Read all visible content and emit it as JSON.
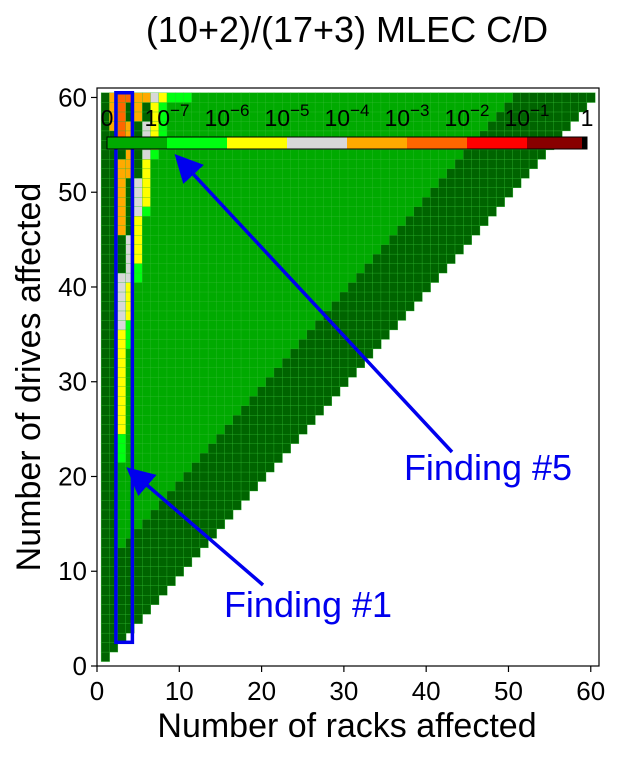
{
  "chart_data": {
    "type": "heatmap",
    "title": "(10+2)/(17+3) MLEC C/D",
    "xlabel": "Number of racks affected",
    "ylabel": "Number of drives affected",
    "xlim": [
      0,
      61
    ],
    "ylim": [
      0,
      61
    ],
    "xticks": [
      "0",
      "10",
      "20",
      "30",
      "40",
      "50",
      "60"
    ],
    "yticks": [
      "0",
      "10",
      "20",
      "30",
      "40",
      "50",
      "60"
    ],
    "grid": false,
    "colorbar": {
      "placement": "top-inside",
      "bins": [
        {
          "label": "0",
          "color": "#00aa00"
        },
        {
          "label": "10^-7",
          "color": "#00ff11"
        },
        {
          "label": "10^-6",
          "color": "#ffff00"
        },
        {
          "label": "10^-5",
          "color": "#d8d8d8"
        },
        {
          "label": "10^-4",
          "color": "#ffaa00"
        },
        {
          "label": "10^-3",
          "color": "#ff6600"
        },
        {
          "label": "10^-2",
          "color": "#ff0000"
        },
        {
          "label": "10^-1",
          "color": "#880000"
        }
      ],
      "labels": [
        {
          "base": "0",
          "exp": ""
        },
        {
          "base": "10",
          "exp": "−7"
        },
        {
          "base": "10",
          "exp": "−6"
        },
        {
          "base": "10",
          "exp": "−5"
        },
        {
          "base": "10",
          "exp": "−4"
        },
        {
          "base": "10",
          "exp": "−3"
        },
        {
          "base": "10",
          "exp": "−2"
        },
        {
          "base": "10",
          "exp": "−1"
        },
        {
          "base": "1",
          "exp": ""
        }
      ]
    },
    "impossible_color": "#006400",
    "cell_grid_color": "#33bb33",
    "band_edges": [
      {
        "y": 3,
        "c": 2
      },
      {
        "y": 23,
        "c": 3
      },
      {
        "y": 34,
        "c": 4
      },
      {
        "y": 42,
        "c": 5
      },
      {
        "y": 49,
        "c": 6
      },
      {
        "y": 55,
        "c": 7
      },
      {
        "y": 60,
        "c": 8
      }
    ],
    "special_cells": {
      "yellow": [
        [
          3,
          25
        ],
        [
          3,
          26
        ],
        [
          3,
          27
        ],
        [
          3,
          28
        ],
        [
          3,
          29
        ],
        [
          3,
          30
        ],
        [
          3,
          31
        ],
        [
          3,
          32
        ],
        [
          3,
          33
        ],
        [
          3,
          34
        ],
        [
          3,
          35
        ],
        [
          4,
          37
        ],
        [
          4,
          38
        ],
        [
          4,
          39
        ],
        [
          4,
          40
        ],
        [
          5,
          43
        ],
        [
          5,
          44
        ],
        [
          5,
          45
        ],
        [
          5,
          46
        ],
        [
          5,
          47
        ],
        [
          6,
          49
        ],
        [
          6,
          50
        ],
        [
          6,
          51
        ],
        [
          6,
          52
        ],
        [
          6,
          53
        ],
        [
          7,
          55
        ],
        [
          7,
          56
        ],
        [
          7,
          57
        ],
        [
          7,
          58
        ],
        [
          7,
          59
        ],
        [
          8,
          60
        ]
      ],
      "light_green": [
        [
          3,
          22
        ],
        [
          3,
          23
        ],
        [
          3,
          24
        ],
        [
          4,
          34
        ],
        [
          4,
          35
        ],
        [
          4,
          36
        ],
        [
          5,
          41
        ],
        [
          5,
          42
        ],
        [
          6,
          48
        ],
        [
          7,
          54
        ],
        [
          8,
          55
        ],
        [
          8,
          56
        ],
        [
          8,
          57
        ],
        [
          8,
          58
        ],
        [
          8,
          59
        ],
        [
          9,
          60
        ],
        [
          10,
          60
        ],
        [
          11,
          60
        ]
      ],
      "gray": [
        [
          3,
          36
        ],
        [
          3,
          37
        ],
        [
          3,
          38
        ],
        [
          3,
          39
        ],
        [
          3,
          40
        ],
        [
          3,
          41
        ],
        [
          4,
          41
        ],
        [
          4,
          42
        ],
        [
          4,
          43
        ],
        [
          4,
          44
        ],
        [
          4,
          45
        ],
        [
          5,
          48
        ],
        [
          5,
          49
        ],
        [
          5,
          50
        ],
        [
          5,
          51
        ],
        [
          6,
          54
        ],
        [
          6,
          55
        ],
        [
          6,
          56
        ],
        [
          6,
          57
        ],
        [
          7,
          60
        ]
      ],
      "orange": [
        [
          3,
          46
        ],
        [
          3,
          47
        ],
        [
          3,
          48
        ],
        [
          3,
          49
        ],
        [
          3,
          50
        ],
        [
          3,
          51
        ],
        [
          3,
          52
        ],
        [
          3,
          53
        ],
        [
          4,
          52
        ],
        [
          4,
          53
        ],
        [
          4,
          54
        ],
        [
          4,
          55
        ],
        [
          4,
          56
        ],
        [
          4,
          57
        ],
        [
          5,
          58
        ],
        [
          5,
          59
        ],
        [
          5,
          60
        ],
        [
          6,
          60
        ]
      ],
      "dark_orange": [
        [
          3,
          56
        ],
        [
          3,
          57
        ],
        [
          3,
          58
        ],
        [
          3,
          59
        ],
        [
          3,
          60
        ],
        [
          4,
          60
        ]
      ]
    },
    "annotations": [
      {
        "text": "Finding #1",
        "arrow_to": [
          4.2,
          20.5
        ]
      },
      {
        "text": "Finding #5",
        "arrow_to": [
          10,
          53.5
        ]
      }
    ],
    "highlight_box": {
      "x": [
        2.3,
        4.3
      ],
      "y": [
        2.5,
        60.5
      ],
      "color": "#0000ee"
    }
  }
}
